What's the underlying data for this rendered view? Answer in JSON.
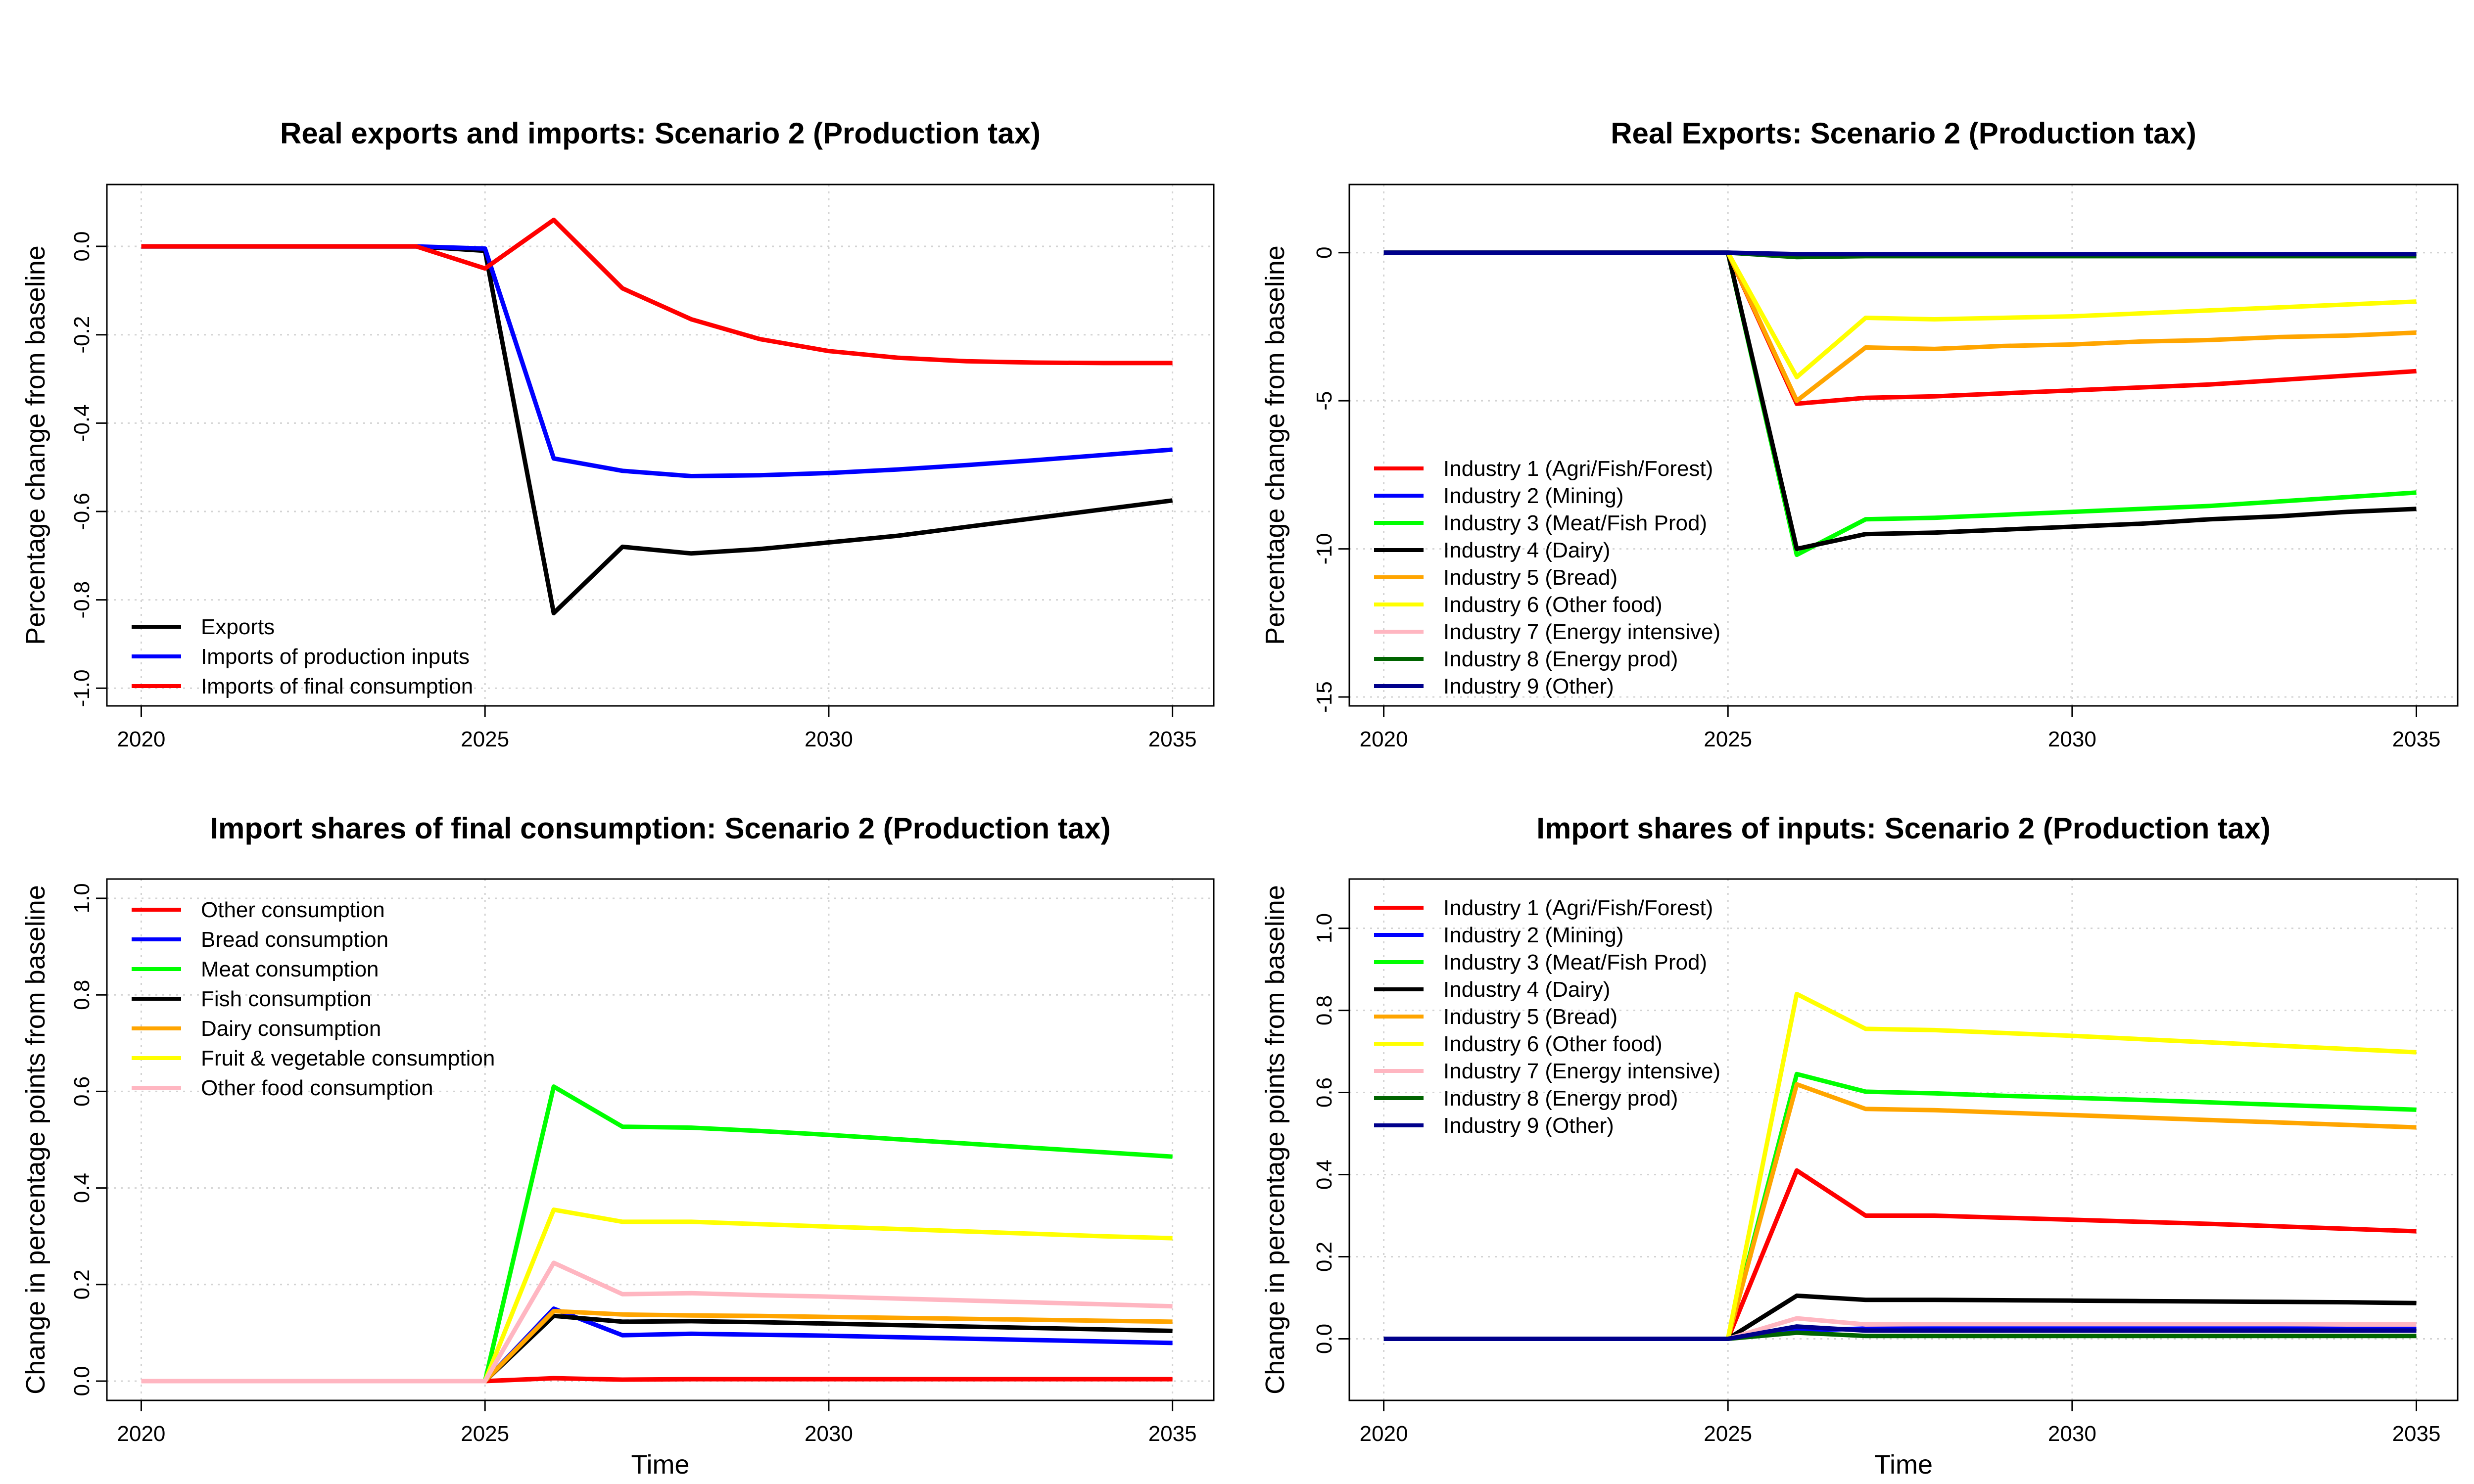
{
  "chart_data": [
    {
      "type": "line",
      "title": "Real exports and imports: Scenario 2 (Production tax)",
      "xlabel": "",
      "ylabel": "Percentage change from baseline",
      "xlim": [
        2019.5,
        2035.6
      ],
      "ylim": [
        -1.04,
        0.14
      ],
      "xticks": [
        "2020",
        "2025",
        "2030",
        "2035"
      ],
      "yticks": [
        "0.0",
        "-0.2",
        "-0.4",
        "-0.6",
        "-0.8",
        "-1.0"
      ],
      "grid": true,
      "legend_position": "bottom-left",
      "x": [
        2020,
        2021,
        2022,
        2023,
        2024,
        2025,
        2026,
        2027,
        2028,
        2029,
        2030,
        2031,
        2032,
        2033,
        2034,
        2035
      ],
      "series": [
        {
          "name": "Exports",
          "color": "#000000",
          "values": [
            0,
            0,
            0,
            0,
            0,
            -0.01,
            -0.83,
            -0.68,
            -0.695,
            -0.685,
            -0.67,
            -0.655,
            -0.635,
            -0.615,
            -0.595,
            -0.575
          ]
        },
        {
          "name": "Imports of production inputs",
          "color": "#0000ff",
          "values": [
            0,
            0,
            0,
            0,
            0,
            -0.005,
            -0.48,
            -0.508,
            -0.52,
            -0.518,
            -0.513,
            -0.505,
            -0.495,
            -0.484,
            -0.472,
            -0.46
          ]
        },
        {
          "name": "Imports of final consumption",
          "color": "#ff0000",
          "values": [
            0,
            0,
            0,
            0,
            0,
            -0.05,
            0.06,
            -0.095,
            -0.165,
            -0.21,
            -0.237,
            -0.252,
            -0.26,
            -0.263,
            -0.264,
            -0.264
          ]
        }
      ]
    },
    {
      "type": "line",
      "title": "Real Exports: Scenario 2 (Production tax)",
      "xlabel": "",
      "ylabel": "Percentage change from baseline",
      "xlim": [
        2019.5,
        2035.6
      ],
      "ylim": [
        -15.3,
        2.3
      ],
      "xticks": [
        "2020",
        "2025",
        "2030",
        "2035"
      ],
      "yticks": [
        "0",
        "-5",
        "-10",
        "-15"
      ],
      "grid": true,
      "legend_position": "bottom-left",
      "x": [
        2020,
        2021,
        2022,
        2023,
        2024,
        2025,
        2026,
        2027,
        2028,
        2029,
        2030,
        2031,
        2032,
        2033,
        2034,
        2035
      ],
      "series": [
        {
          "name": "Industry 1 (Agri/Fish/Forest)",
          "color": "#ff0000",
          "values": [
            0,
            0,
            0,
            0,
            0,
            0,
            -5.1,
            -4.9,
            -4.85,
            -4.75,
            -4.65,
            -4.55,
            -4.45,
            -4.3,
            -4.15,
            -4.0
          ]
        },
        {
          "name": "Industry 2 (Mining)",
          "color": "#0000ff",
          "values": [
            0,
            0,
            0,
            0,
            0,
            0,
            -0.08,
            -0.07,
            -0.07,
            -0.07,
            -0.07,
            -0.07,
            -0.07,
            -0.07,
            -0.07,
            -0.07
          ]
        },
        {
          "name": "Industry 3 (Meat/Fish Prod)",
          "color": "#00ff00",
          "values": [
            0,
            0,
            0,
            0,
            0,
            0,
            -10.2,
            -9.0,
            -8.95,
            -8.85,
            -8.75,
            -8.65,
            -8.55,
            -8.4,
            -8.25,
            -8.1
          ]
        },
        {
          "name": "Industry 4 (Dairy)",
          "color": "#000000",
          "values": [
            0,
            0,
            0,
            0,
            0,
            0,
            -10.0,
            -9.5,
            -9.45,
            -9.35,
            -9.25,
            -9.15,
            -9.0,
            -8.9,
            -8.75,
            -8.65
          ]
        },
        {
          "name": "Industry 5 (Bread)",
          "color": "#ffa500",
          "values": [
            0,
            0,
            0,
            0,
            0,
            0,
            -5.0,
            -3.2,
            -3.25,
            -3.15,
            -3.1,
            -3.0,
            -2.95,
            -2.85,
            -2.8,
            -2.7
          ]
        },
        {
          "name": "Industry 6 (Other food)",
          "color": "#ffff00",
          "values": [
            0,
            0,
            0,
            0,
            0,
            0,
            -4.2,
            -2.2,
            -2.25,
            -2.2,
            -2.15,
            -2.05,
            -1.95,
            -1.85,
            -1.75,
            -1.65
          ]
        },
        {
          "name": "Industry 7 (Energy intensive)",
          "color": "#ffb6c1",
          "values": [
            0,
            0,
            0,
            0,
            0,
            0,
            -0.1,
            -0.09,
            -0.09,
            -0.09,
            -0.09,
            -0.09,
            -0.09,
            -0.09,
            -0.09,
            -0.09
          ]
        },
        {
          "name": "Industry 8 (Energy prod)",
          "color": "#006400",
          "values": [
            0,
            0,
            0,
            0,
            0,
            0,
            -0.15,
            -0.12,
            -0.12,
            -0.12,
            -0.12,
            -0.12,
            -0.12,
            -0.12,
            -0.12,
            -0.12
          ]
        },
        {
          "name": "Industry 9 (Other)",
          "color": "#00008b",
          "values": [
            0,
            0,
            0,
            0,
            0,
            0,
            -0.05,
            -0.05,
            -0.05,
            -0.05,
            -0.05,
            -0.05,
            -0.05,
            -0.05,
            -0.05,
            -0.05
          ]
        }
      ]
    },
    {
      "type": "line",
      "title": "Import shares of final consumption: Scenario 2 (Production tax)",
      "xlabel": "Time",
      "ylabel": "Change in percentage points from baseline",
      "xlim": [
        2019.5,
        2035.6
      ],
      "ylim": [
        -0.04,
        1.04
      ],
      "xticks": [
        "2020",
        "2025",
        "2030",
        "2035"
      ],
      "yticks": [
        "0.0",
        "0.2",
        "0.4",
        "0.6",
        "0.8",
        "1.0"
      ],
      "grid": true,
      "legend_position": "top-left",
      "x": [
        2020,
        2021,
        2022,
        2023,
        2024,
        2025,
        2026,
        2027,
        2028,
        2029,
        2030,
        2031,
        2032,
        2033,
        2034,
        2035
      ],
      "series": [
        {
          "name": "Other consumption",
          "color": "#ff0000",
          "values": [
            0,
            0,
            0,
            0,
            0,
            0,
            0.006,
            0.003,
            0.004,
            0.004,
            0.004,
            0.004,
            0.004,
            0.004,
            0.004,
            0.004
          ]
        },
        {
          "name": "Bread consumption",
          "color": "#0000ff",
          "values": [
            0,
            0,
            0,
            0,
            0,
            0,
            0.15,
            0.095,
            0.098,
            0.096,
            0.094,
            0.091,
            0.088,
            0.085,
            0.082,
            0.079
          ]
        },
        {
          "name": "Meat consumption",
          "color": "#00ff00",
          "values": [
            0,
            0,
            0,
            0,
            0,
            0,
            0.61,
            0.527,
            0.525,
            0.518,
            0.51,
            0.501,
            0.492,
            0.483,
            0.474,
            0.465
          ]
        },
        {
          "name": "Fish consumption",
          "color": "#000000",
          "values": [
            0,
            0,
            0,
            0,
            0,
            0,
            0.135,
            0.123,
            0.124,
            0.122,
            0.119,
            0.116,
            0.113,
            0.11,
            0.107,
            0.104
          ]
        },
        {
          "name": "Dairy consumption",
          "color": "#ffa500",
          "values": [
            0,
            0,
            0,
            0,
            0,
            0,
            0.145,
            0.138,
            0.136,
            0.135,
            0.133,
            0.131,
            0.129,
            0.127,
            0.125,
            0.123
          ]
        },
        {
          "name": "Fruit & vegetable consumption",
          "color": "#ffff00",
          "values": [
            0,
            0,
            0,
            0,
            0,
            0,
            0.355,
            0.33,
            0.33,
            0.325,
            0.32,
            0.315,
            0.31,
            0.305,
            0.3,
            0.296
          ]
        },
        {
          "name": "Other food consumption",
          "color": "#ffb6c1",
          "values": [
            0,
            0,
            0,
            0,
            0,
            0,
            0.245,
            0.18,
            0.182,
            0.178,
            0.175,
            0.171,
            0.167,
            0.163,
            0.159,
            0.155
          ]
        }
      ]
    },
    {
      "type": "line",
      "title": "Import shares of inputs: Scenario 2 (Production tax)",
      "xlabel": "Time",
      "ylabel": "Change in percentage points from baseline",
      "xlim": [
        2019.5,
        2035.6
      ],
      "ylim": [
        -0.15,
        1.12
      ],
      "xticks": [
        "2020",
        "2025",
        "2030",
        "2035"
      ],
      "yticks": [
        "0.0",
        "0.2",
        "0.4",
        "0.6",
        "0.8",
        "1.0"
      ],
      "grid": true,
      "legend_position": "top-left",
      "x": [
        2020,
        2021,
        2022,
        2023,
        2024,
        2025,
        2026,
        2027,
        2028,
        2029,
        2030,
        2031,
        2032,
        2033,
        2034,
        2035
      ],
      "series": [
        {
          "name": "Industry 1 (Agri/Fish/Forest)",
          "color": "#ff0000",
          "values": [
            0,
            0,
            0,
            0,
            0,
            0,
            0.41,
            0.3,
            0.3,
            0.295,
            0.29,
            0.285,
            0.28,
            0.274,
            0.268,
            0.262
          ]
        },
        {
          "name": "Industry 2 (Mining)",
          "color": "#0000ff",
          "values": [
            0,
            0,
            0,
            0,
            0,
            0,
            0.02,
            0.025,
            0.025,
            0.025,
            0.025,
            0.025,
            0.025,
            0.025,
            0.025,
            0.025
          ]
        },
        {
          "name": "Industry 3 (Meat/Fish Prod)",
          "color": "#00ff00",
          "values": [
            0,
            0,
            0,
            0,
            0,
            0,
            0.645,
            0.602,
            0.598,
            0.592,
            0.587,
            0.582,
            0.576,
            0.57,
            0.564,
            0.558
          ]
        },
        {
          "name": "Industry 4 (Dairy)",
          "color": "#000000",
          "values": [
            0,
            0,
            0,
            0,
            0,
            0,
            0.105,
            0.095,
            0.095,
            0.094,
            0.093,
            0.092,
            0.091,
            0.09,
            0.089,
            0.087
          ]
        },
        {
          "name": "Industry 5 (Bread)",
          "color": "#ffa500",
          "values": [
            0,
            0,
            0,
            0,
            0,
            0,
            0.62,
            0.56,
            0.557,
            0.551,
            0.545,
            0.539,
            0.533,
            0.527,
            0.521,
            0.515
          ]
        },
        {
          "name": "Industry 6 (Other food)",
          "color": "#ffff00",
          "values": [
            0,
            0,
            0,
            0,
            0,
            0,
            0.84,
            0.755,
            0.752,
            0.745,
            0.738,
            0.73,
            0.722,
            0.714,
            0.706,
            0.698
          ]
        },
        {
          "name": "Industry 7 (Energy intensive)",
          "color": "#ffb6c1",
          "values": [
            0,
            0,
            0,
            0,
            0,
            0,
            0.05,
            0.035,
            0.036,
            0.036,
            0.036,
            0.036,
            0.036,
            0.036,
            0.035,
            0.035
          ]
        },
        {
          "name": "Industry 8 (Energy prod)",
          "color": "#006400",
          "values": [
            0,
            0,
            0,
            0,
            0,
            0,
            0.015,
            0.007,
            0.007,
            0.007,
            0.007,
            0.007,
            0.007,
            0.007,
            0.007,
            0.007
          ]
        },
        {
          "name": "Industry 9 (Other)",
          "color": "#00008b",
          "values": [
            0,
            0,
            0,
            0,
            0,
            0,
            0.03,
            0.02,
            0.02,
            0.02,
            0.02,
            0.02,
            0.02,
            0.02,
            0.02,
            0.02
          ]
        }
      ]
    }
  ]
}
